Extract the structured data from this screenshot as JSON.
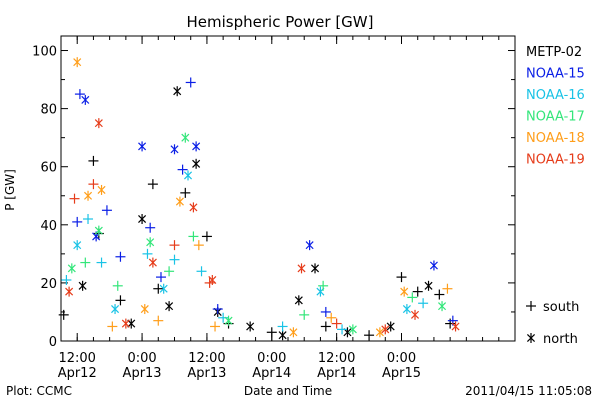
{
  "chart_data": {
    "type": "scatter",
    "title": "Hemispheric Power [GW]",
    "xlabel": "Date and Time",
    "ylabel": "P [GW]",
    "xlim": [
      "2011-04-12T09:00",
      "2011-04-15T21:00"
    ],
    "ylim": [
      0,
      105
    ],
    "yticks": [
      0,
      20,
      40,
      60,
      80,
      100
    ],
    "xticks": [
      {
        "time": "2011-04-12T12:00",
        "line1": "12:00",
        "line2": "Apr12"
      },
      {
        "time": "2011-04-13T00:00",
        "line1": "0:00",
        "line2": "Apr13"
      },
      {
        "time": "2011-04-13T12:00",
        "line1": "12:00",
        "line2": "Apr13"
      },
      {
        "time": "2011-04-14T00:00",
        "line1": "0:00",
        "line2": "Apr14"
      },
      {
        "time": "2011-04-14T12:00",
        "line1": "12:00",
        "line2": "Apr14"
      },
      {
        "time": "2011-04-15T00:00",
        "line1": "0:00",
        "line2": "Apr15"
      }
    ],
    "legend_position": "right",
    "marker_legend": [
      {
        "symbol": "+",
        "label": "south"
      },
      {
        "symbol": "*",
        "label": "north"
      }
    ],
    "series": [
      {
        "name": "METP-02",
        "color": "#000000",
        "points": [
          {
            "x": "2011-04-12T09:30",
            "y": 9,
            "m": "+"
          },
          {
            "x": "2011-04-12T13:00",
            "y": 19,
            "m": "*"
          },
          {
            "x": "2011-04-12T15:00",
            "y": 62,
            "m": "+"
          },
          {
            "x": "2011-04-12T16:00",
            "y": 37,
            "m": "+"
          },
          {
            "x": "2011-04-12T20:00",
            "y": 14,
            "m": "+"
          },
          {
            "x": "2011-04-12T22:00",
            "y": 6,
            "m": "*"
          },
          {
            "x": "2011-04-13T00:00",
            "y": 42,
            "m": "*"
          },
          {
            "x": "2011-04-13T02:00",
            "y": 54,
            "m": "+"
          },
          {
            "x": "2011-04-13T03:00",
            "y": 18,
            "m": "+"
          },
          {
            "x": "2011-04-13T05:00",
            "y": 12,
            "m": "*"
          },
          {
            "x": "2011-04-13T06:30",
            "y": 86,
            "m": "*"
          },
          {
            "x": "2011-04-13T08:00",
            "y": 51,
            "m": "+"
          },
          {
            "x": "2011-04-13T10:00",
            "y": 61,
            "m": "*"
          },
          {
            "x": "2011-04-13T12:00",
            "y": 36,
            "m": "+"
          },
          {
            "x": "2011-04-13T14:00",
            "y": 10,
            "m": "*"
          },
          {
            "x": "2011-04-13T16:00",
            "y": 6,
            "m": "+"
          },
          {
            "x": "2011-04-13T20:00",
            "y": 5,
            "m": "*"
          },
          {
            "x": "2011-04-14T00:00",
            "y": 3,
            "m": "+"
          },
          {
            "x": "2011-04-14T02:00",
            "y": 2,
            "m": "*"
          },
          {
            "x": "2011-04-14T05:00",
            "y": 14,
            "m": "*"
          },
          {
            "x": "2011-04-14T08:00",
            "y": 25,
            "m": "*"
          },
          {
            "x": "2011-04-14T10:00",
            "y": 5,
            "m": "+"
          },
          {
            "x": "2011-04-14T14:00",
            "y": 3,
            "m": "*"
          },
          {
            "x": "2011-04-14T18:00",
            "y": 2,
            "m": "+"
          },
          {
            "x": "2011-04-14T22:00",
            "y": 5,
            "m": "*"
          },
          {
            "x": "2011-04-15T00:00",
            "y": 22,
            "m": "+"
          },
          {
            "x": "2011-04-15T03:00",
            "y": 17,
            "m": "+"
          },
          {
            "x": "2011-04-15T05:00",
            "y": 19,
            "m": "*"
          },
          {
            "x": "2011-04-15T07:00",
            "y": 16,
            "m": "+"
          },
          {
            "x": "2011-04-15T09:00",
            "y": 6,
            "m": "+"
          }
        ]
      },
      {
        "name": "NOAA-15",
        "color": "#0a1ee6",
        "points": [
          {
            "x": "2011-04-12T12:00",
            "y": 41,
            "m": "+"
          },
          {
            "x": "2011-04-12T12:30",
            "y": 85,
            "m": "+"
          },
          {
            "x": "2011-04-12T13:30",
            "y": 83,
            "m": "*"
          },
          {
            "x": "2011-04-12T15:30",
            "y": 36,
            "m": "*"
          },
          {
            "x": "2011-04-12T17:30",
            "y": 45,
            "m": "+"
          },
          {
            "x": "2011-04-12T20:00",
            "y": 29,
            "m": "+"
          },
          {
            "x": "2011-04-13T00:00",
            "y": 67,
            "m": "*"
          },
          {
            "x": "2011-04-13T01:30",
            "y": 39,
            "m": "+"
          },
          {
            "x": "2011-04-13T03:30",
            "y": 22,
            "m": "+"
          },
          {
            "x": "2011-04-13T06:00",
            "y": 66,
            "m": "*"
          },
          {
            "x": "2011-04-13T07:30",
            "y": 59,
            "m": "+"
          },
          {
            "x": "2011-04-13T09:00",
            "y": 89,
            "m": "+"
          },
          {
            "x": "2011-04-13T10:00",
            "y": 67,
            "m": "*"
          },
          {
            "x": "2011-04-13T14:00",
            "y": 11,
            "m": "+"
          },
          {
            "x": "2011-04-14T07:00",
            "y": 33,
            "m": "*"
          },
          {
            "x": "2011-04-14T10:00",
            "y": 10,
            "m": "+"
          },
          {
            "x": "2011-04-15T06:00",
            "y": 26,
            "m": "*"
          },
          {
            "x": "2011-04-15T09:30",
            "y": 7,
            "m": "+"
          }
        ]
      },
      {
        "name": "NOAA-16",
        "color": "#19c3e6",
        "points": [
          {
            "x": "2011-04-12T10:00",
            "y": 21,
            "m": "+"
          },
          {
            "x": "2011-04-12T12:00",
            "y": 33,
            "m": "*"
          },
          {
            "x": "2011-04-12T14:00",
            "y": 42,
            "m": "+"
          },
          {
            "x": "2011-04-12T16:30",
            "y": 27,
            "m": "+"
          },
          {
            "x": "2011-04-12T19:00",
            "y": 11,
            "m": "*"
          },
          {
            "x": "2011-04-13T01:00",
            "y": 30,
            "m": "+"
          },
          {
            "x": "2011-04-13T04:00",
            "y": 18,
            "m": "*"
          },
          {
            "x": "2011-04-13T06:00",
            "y": 28,
            "m": "+"
          },
          {
            "x": "2011-04-13T08:30",
            "y": 57,
            "m": "*"
          },
          {
            "x": "2011-04-13T11:00",
            "y": 24,
            "m": "+"
          },
          {
            "x": "2011-04-13T15:00",
            "y": 8,
            "m": "+"
          },
          {
            "x": "2011-04-14T02:00",
            "y": 5,
            "m": "+"
          },
          {
            "x": "2011-04-14T09:00",
            "y": 17,
            "m": "*"
          },
          {
            "x": "2011-04-14T13:00",
            "y": 4,
            "m": "+"
          },
          {
            "x": "2011-04-15T01:00",
            "y": 11,
            "m": "*"
          },
          {
            "x": "2011-04-15T04:00",
            "y": 13,
            "m": "+"
          }
        ]
      },
      {
        "name": "NOAA-17",
        "color": "#33e67a",
        "points": [
          {
            "x": "2011-04-12T11:00",
            "y": 25,
            "m": "*"
          },
          {
            "x": "2011-04-12T13:30",
            "y": 27,
            "m": "+"
          },
          {
            "x": "2011-04-12T16:00",
            "y": 38,
            "m": "*"
          },
          {
            "x": "2011-04-12T19:30",
            "y": 19,
            "m": "+"
          },
          {
            "x": "2011-04-13T01:30",
            "y": 34,
            "m": "*"
          },
          {
            "x": "2011-04-13T05:00",
            "y": 24,
            "m": "+"
          },
          {
            "x": "2011-04-13T08:00",
            "y": 70,
            "m": "*"
          },
          {
            "x": "2011-04-13T09:30",
            "y": 36,
            "m": "+"
          },
          {
            "x": "2011-04-13T16:00",
            "y": 7,
            "m": "*"
          },
          {
            "x": "2011-04-14T06:00",
            "y": 9,
            "m": "+"
          },
          {
            "x": "2011-04-14T09:30",
            "y": 19,
            "m": "+"
          },
          {
            "x": "2011-04-14T15:00",
            "y": 4,
            "m": "*"
          },
          {
            "x": "2011-04-15T02:00",
            "y": 15,
            "m": "+"
          },
          {
            "x": "2011-04-15T07:30",
            "y": 12,
            "m": "*"
          }
        ]
      },
      {
        "name": "NOAA-18",
        "color": "#ff9e1a",
        "points": [
          {
            "x": "2011-04-12T12:00",
            "y": 96,
            "m": "*"
          },
          {
            "x": "2011-04-12T14:00",
            "y": 50,
            "m": "*"
          },
          {
            "x": "2011-04-12T16:30",
            "y": 52,
            "m": "*"
          },
          {
            "x": "2011-04-12T18:30",
            "y": 5,
            "m": "+"
          },
          {
            "x": "2011-04-13T00:30",
            "y": 11,
            "m": "*"
          },
          {
            "x": "2011-04-13T03:00",
            "y": 7,
            "m": "+"
          },
          {
            "x": "2011-04-13T07:00",
            "y": 48,
            "m": "*"
          },
          {
            "x": "2011-04-13T10:30",
            "y": 33,
            "m": "+"
          },
          {
            "x": "2011-04-13T13:30",
            "y": 5,
            "m": "+"
          },
          {
            "x": "2011-04-14T04:00",
            "y": 3,
            "m": "*"
          },
          {
            "x": "2011-04-14T11:00",
            "y": 8,
            "m": "+"
          },
          {
            "x": "2011-04-14T20:00",
            "y": 3,
            "m": "*"
          },
          {
            "x": "2011-04-15T00:30",
            "y": 17,
            "m": "*"
          },
          {
            "x": "2011-04-15T08:30",
            "y": 18,
            "m": "+"
          }
        ]
      },
      {
        "name": "NOAA-19",
        "color": "#e63c1a",
        "points": [
          {
            "x": "2011-04-12T10:30",
            "y": 17,
            "m": "*"
          },
          {
            "x": "2011-04-12T11:30",
            "y": 49,
            "m": "+"
          },
          {
            "x": "2011-04-12T15:00",
            "y": 54,
            "m": "+"
          },
          {
            "x": "2011-04-12T16:00",
            "y": 75,
            "m": "*"
          },
          {
            "x": "2011-04-12T21:00",
            "y": 6,
            "m": "*"
          },
          {
            "x": "2011-04-13T02:00",
            "y": 27,
            "m": "*"
          },
          {
            "x": "2011-04-13T06:00",
            "y": 33,
            "m": "+"
          },
          {
            "x": "2011-04-13T09:30",
            "y": 46,
            "m": "*"
          },
          {
            "x": "2011-04-13T12:30",
            "y": 20,
            "m": "+"
          },
          {
            "x": "2011-04-13T13:00",
            "y": 21,
            "m": "*"
          },
          {
            "x": "2011-04-14T05:30",
            "y": 25,
            "m": "*"
          },
          {
            "x": "2011-04-14T12:00",
            "y": 6,
            "m": "+"
          },
          {
            "x": "2011-04-14T21:00",
            "y": 4,
            "m": "*"
          },
          {
            "x": "2011-04-15T02:30",
            "y": 9,
            "m": "*"
          },
          {
            "x": "2011-04-15T10:00",
            "y": 5,
            "m": "*"
          }
        ]
      }
    ]
  },
  "footer": {
    "left": "Plot: CCMC",
    "right": "2011/04/15 11:05:08"
  }
}
